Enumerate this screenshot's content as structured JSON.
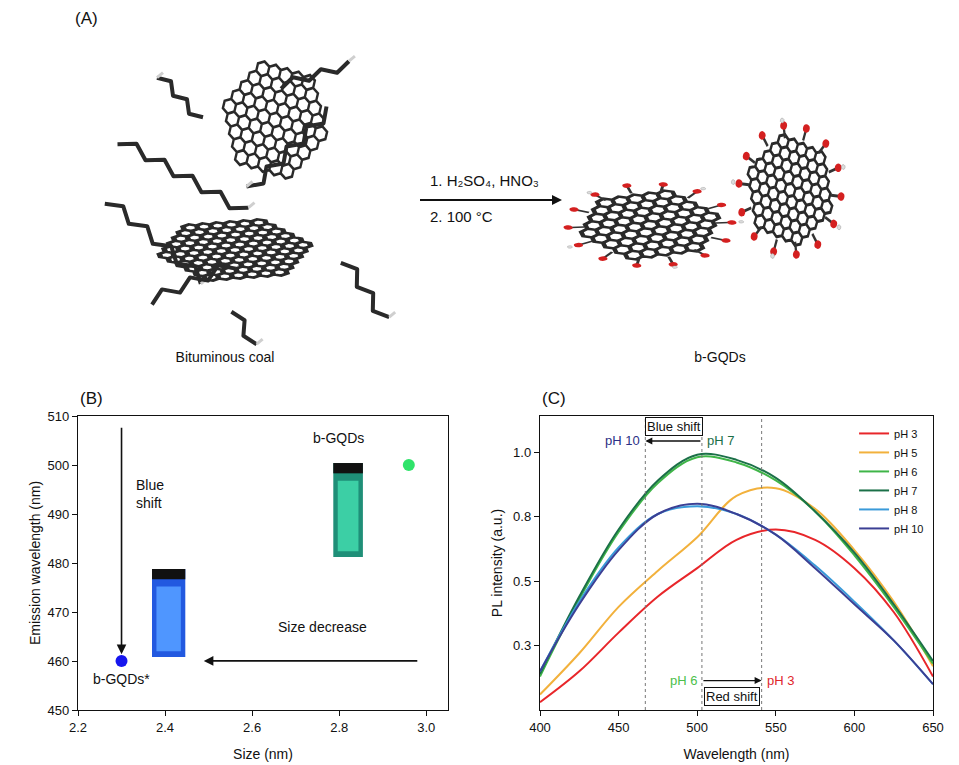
{
  "diagram": {
    "panel": "(A)",
    "reactant": "Bituminous coal",
    "product": "b-GQDs",
    "conditions": [
      "1. H₂SO₄, HNO₃",
      "2. 100 °C"
    ]
  },
  "chart_data": [
    {
      "panel": "(B)",
      "type": "scatter",
      "xlabel": "Size (nm)",
      "ylabel": "Emission wavelength (nm)",
      "xlim": [
        2.2,
        3.05
      ],
      "xticks": [
        2.2,
        2.4,
        2.6,
        2.8,
        {
          "value": 3,
          "label": "3.0"
        }
      ],
      "ylim": [
        450,
        510
      ],
      "yticks": [
        450,
        460,
        470,
        480,
        490,
        500,
        510
      ],
      "grid": false,
      "series": [
        {
          "name": "b-GQDs",
          "color": "#2fe36a",
          "x": [
            2.96
          ],
          "values": [
            500
          ]
        },
        {
          "name": "b-GQDs*",
          "color": "#1616ee",
          "x": [
            2.3
          ],
          "values": [
            460
          ]
        }
      ],
      "annotations": [
        "Blue shift",
        "Size decrease"
      ]
    },
    {
      "panel": "(C)",
      "type": "line",
      "xlabel": "Wavelength (nm)",
      "ylabel": "PL intensity (a.u.)",
      "xlim": [
        400,
        650
      ],
      "xticks": [
        400,
        450,
        500,
        550,
        600,
        650
      ],
      "ylim": [
        0,
        1.14
      ],
      "yticks": [
        {
          "value": 0.25,
          "label": "0.3"
        },
        0.5,
        {
          "value": 0.75,
          "label": "0.8"
        },
        {
          "value": 1,
          "label": "1.0"
        }
      ],
      "grid": false,
      "legend": "upper right",
      "x": [
        400,
        425,
        450,
        475,
        500,
        525,
        550,
        575,
        600,
        625,
        650
      ],
      "series": [
        {
          "name": "pH 3",
          "color": "#e8262a",
          "values": [
            0.03,
            0.15,
            0.3,
            0.44,
            0.55,
            0.66,
            0.7,
            0.66,
            0.55,
            0.38,
            0.13
          ]
        },
        {
          "name": "pH 5",
          "color": "#f2b13c",
          "values": [
            0.06,
            0.22,
            0.4,
            0.54,
            0.67,
            0.83,
            0.86,
            0.78,
            0.62,
            0.42,
            0.17
          ]
        },
        {
          "name": "pH 6",
          "color": "#3fb548",
          "values": [
            0.13,
            0.43,
            0.69,
            0.88,
            0.98,
            0.96,
            0.89,
            0.77,
            0.6,
            0.4,
            0.18
          ]
        },
        {
          "name": "pH 7",
          "color": "#1b7048",
          "values": [
            0.14,
            0.44,
            0.7,
            0.89,
            0.99,
            0.97,
            0.9,
            0.77,
            0.61,
            0.41,
            0.19
          ]
        },
        {
          "name": "pH 8",
          "color": "#3a9ad9",
          "values": [
            0.15,
            0.42,
            0.63,
            0.76,
            0.79,
            0.76,
            0.68,
            0.56,
            0.42,
            0.27,
            0.1
          ]
        },
        {
          "name": "pH 10",
          "color": "#3b3f94",
          "values": [
            0.15,
            0.41,
            0.62,
            0.76,
            0.8,
            0.76,
            0.68,
            0.55,
            0.41,
            0.27,
            0.1
          ]
        }
      ],
      "vlines": [
        467,
        503,
        541
      ],
      "annotations": [
        {
          "text": "pH 10",
          "color": "#2b2f86"
        },
        {
          "text": "Blue shift",
          "color": "#1b6e46"
        },
        {
          "text": "pH 7",
          "color": "#1b6e46"
        },
        {
          "text": "pH 6",
          "color": "#4cbf4a"
        },
        {
          "text": "Red shift",
          "color": "#c8262c"
        },
        {
          "text": "pH 3",
          "color": "#e0262c"
        }
      ]
    }
  ]
}
